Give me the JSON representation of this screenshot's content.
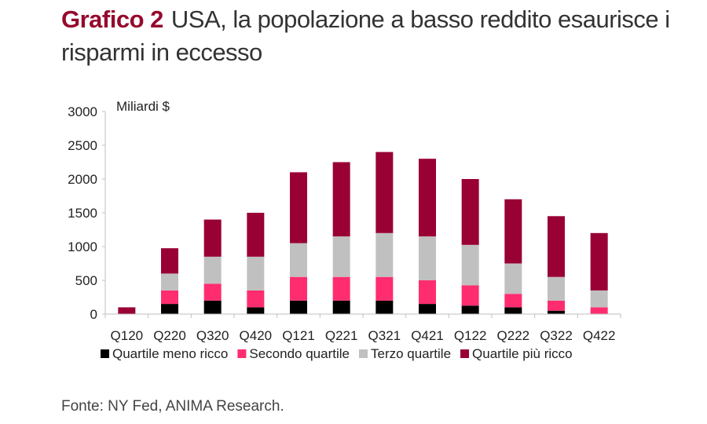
{
  "header": {
    "lead": "Grafico 2",
    "title": "USA, la popolazione a basso reddito esaurisce i risparmi in eccesso"
  },
  "source": "Fonte: NY Fed, ANIMA Research.",
  "chart_data": {
    "type": "bar",
    "stacked": true,
    "title": "Grafico 2 USA, la popolazione a basso reddito esaurisce i risparmi in eccesso",
    "ylabel": "Miliardi $",
    "xlabel": "",
    "ylim": [
      0,
      3000
    ],
    "yticks": [
      0,
      500,
      1000,
      1500,
      2000,
      2500,
      3000
    ],
    "grid": false,
    "legend_position": "bottom",
    "categories": [
      "Q120",
      "Q220",
      "Q320",
      "Q420",
      "Q121",
      "Q221",
      "Q321",
      "Q421",
      "Q122",
      "Q222",
      "Q322",
      "Q422"
    ],
    "series": [
      {
        "name": "Quartile meno ricco",
        "color": "#000000",
        "values": [
          0,
          150,
          200,
          100,
          200,
          200,
          200,
          150,
          125,
          100,
          50,
          0
        ]
      },
      {
        "name": "Secondo quartile",
        "color": "#ff2d6f",
        "values": [
          0,
          200,
          250,
          250,
          350,
          350,
          350,
          350,
          300,
          200,
          150,
          100
        ]
      },
      {
        "name": "Terzo quartile",
        "color": "#c0c0c0",
        "values": [
          0,
          250,
          400,
          500,
          500,
          600,
          650,
          650,
          600,
          450,
          350,
          250
        ]
      },
      {
        "name": "Quartile più ricco",
        "color": "#990033",
        "values": [
          100,
          375,
          550,
          650,
          1050,
          1100,
          1200,
          1150,
          975,
          950,
          900,
          850
        ]
      }
    ]
  }
}
